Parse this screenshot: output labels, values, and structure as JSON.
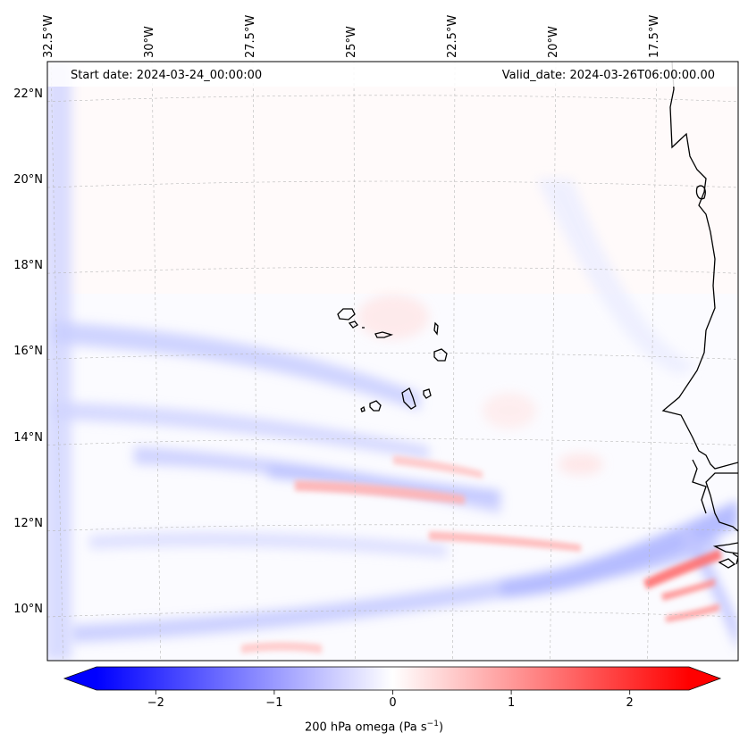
{
  "header": {
    "start_date": "Start date: 2024-03-24_00:00:00",
    "valid_date": "Valid_date: 2024-03-26T06:00:00.00"
  },
  "axes": {
    "lon_labels": [
      "32.5°W",
      "30°W",
      "27.5°W",
      "25°W",
      "22.5°W",
      "20°W",
      "17.5°W"
    ],
    "lon_values": [
      -32.5,
      -30,
      -27.5,
      -25,
      -22.5,
      -20,
      -17.5
    ],
    "lat_labels": [
      "22°N",
      "20°N",
      "18°N",
      "16°N",
      "14°N",
      "12°N",
      "10°N"
    ],
    "lat_values": [
      22,
      20,
      18,
      16,
      14,
      12,
      10
    ],
    "lon_range": [
      -32.5,
      -15.8
    ],
    "lat_range": [
      8.9,
      22.8
    ],
    "gridlines": true
  },
  "colorbar": {
    "label": "200 hPa omega (Pa s",
    "label_exp": "−1",
    "label_close": ")",
    "ticks": [
      "−2",
      "−1",
      "0",
      "1",
      "2"
    ],
    "tick_values": [
      -2,
      -1,
      0,
      1,
      2
    ],
    "range": [
      -2.5,
      2.5
    ],
    "extend": "both",
    "cmap": "bwr",
    "color_min": "#0000ff",
    "color_mid": "#ffffff",
    "color_max": "#ff0000"
  },
  "map": {
    "variable": "200 hPa omega",
    "units": "Pa s-1",
    "features": [
      "Cape Verde islands coastline",
      "West African coastline"
    ],
    "coast_color": "#000000"
  }
}
